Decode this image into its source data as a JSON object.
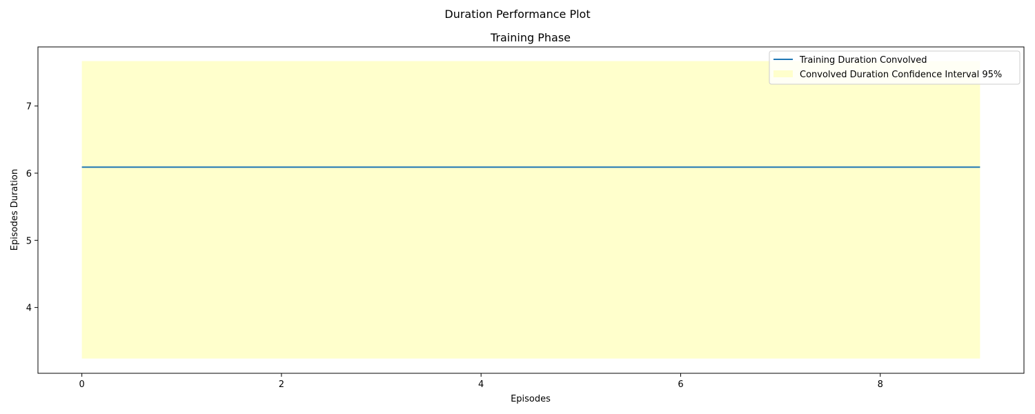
{
  "figure": {
    "suptitle": "Duration Performance Plot"
  },
  "chart_data": {
    "type": "line",
    "title": "Training Phase",
    "xlabel": "Episodes",
    "ylabel": "Episodes Duration",
    "xlim": [
      -0.44,
      9.44
    ],
    "ylim": [
      3.02,
      7.88
    ],
    "xticks": [
      0,
      2,
      4,
      6,
      8
    ],
    "xtick_labels": [
      "0",
      "2",
      "4",
      "6",
      "8"
    ],
    "yticks": [
      4,
      5,
      6,
      7
    ],
    "ytick_labels": [
      "4",
      "5",
      "6",
      "7"
    ],
    "grid": false,
    "legend_position": "top-right",
    "series": [
      {
        "name": "Training Duration Convolved",
        "color": "#1f77b4",
        "x": [
          0,
          1,
          2,
          3,
          4,
          5,
          6,
          7,
          8,
          9
        ],
        "y": [
          6.09,
          6.09,
          6.09,
          6.09,
          6.09,
          6.09,
          6.09,
          6.09,
          6.09,
          6.09
        ]
      }
    ],
    "bands": [
      {
        "name": "Convolved Duration Confidence Interval 95%",
        "color": "#ffffcc",
        "x": [
          0,
          9
        ],
        "lower": [
          3.24,
          3.24
        ],
        "upper": [
          7.67,
          7.67
        ]
      }
    ]
  }
}
